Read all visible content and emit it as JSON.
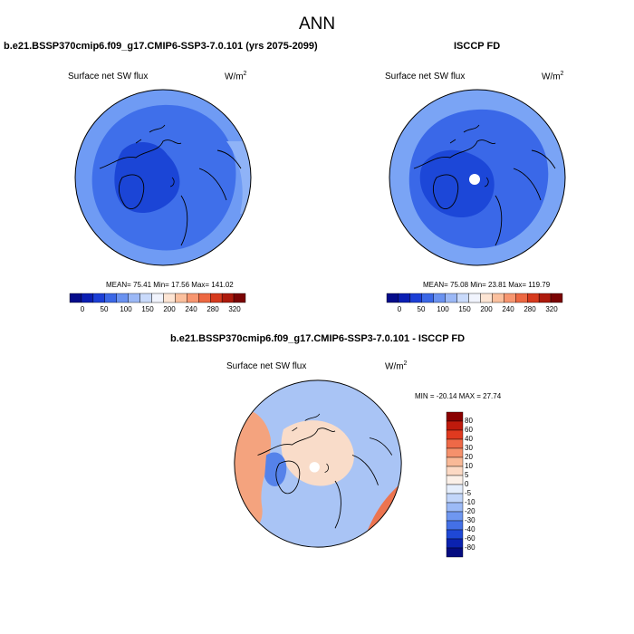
{
  "figure": {
    "title": "ANN"
  },
  "panels": [
    {
      "title": "b.e21.BSSP370cmip6.f09_g17.CMIP6-SSP3-7.0.101 (yrs 2075-2099)",
      "variable": "Surface net SW flux",
      "units": "W/m",
      "units_sup": "2",
      "stats": "MEAN=  75.41  Min=  17.56  Max= 141.02",
      "colors": {
        "base": "#3f6fea",
        "dark": "#1b45d6",
        "light": "#6f9bf4",
        "edge": "#8fb3f7"
      }
    },
    {
      "title": "ISCCP FD",
      "variable": "Surface net SW flux",
      "units": "W/m",
      "units_sup": "2",
      "stats": "MEAN=  75.08  Min=  23.81  Max= 119.79",
      "colors": {
        "base": "#3a68e8",
        "dark": "#1c47d8",
        "light": "#7aa4f5",
        "missing": "#ffffff"
      }
    },
    {
      "title": "b.e21.BSSP370cmip6.f09_g17.CMIP6-SSP3-7.0.101 - ISCCP FD",
      "variable": "Surface net SW flux",
      "units": "W/m",
      "units_sup": "2",
      "stats": "MIN = -20.14 MAX =  27.74",
      "colors": {
        "base": "#a9c4f5",
        "red": "#f4a37e",
        "deep_red": "#ec7450",
        "light": "#f9dcc9",
        "blue": "#5582ea"
      }
    }
  ],
  "colorbar_abs": {
    "labels": [
      "0",
      "50",
      "100",
      "150",
      "200",
      "240",
      "280",
      "320"
    ],
    "colors": [
      "#050c8a",
      "#0b1fb3",
      "#1c3fd6",
      "#3b67e6",
      "#6a92f0",
      "#9bb8f6",
      "#c9dafb",
      "#f1f4fd",
      "#fde5d4",
      "#fbc09e",
      "#f79670",
      "#ed6842",
      "#d63a1d",
      "#ad1a0c",
      "#7a0404"
    ]
  },
  "colorbar_diff": {
    "labels": [
      "80",
      "60",
      "40",
      "30",
      "20",
      "10",
      "5",
      "0",
      "-5",
      "-10",
      "-20",
      "-30",
      "-40",
      "-60",
      "-80"
    ],
    "colors": [
      "#8a0000",
      "#bf1a0c",
      "#e03a1f",
      "#ee6947",
      "#f5916c",
      "#f9b997",
      "#fcd9c4",
      "#fbf0e8",
      "#e5eefc",
      "#c2d6fa",
      "#9cbaf6",
      "#6f97f0",
      "#4470e6",
      "#1f48d6",
      "#0b22b0",
      "#050c80"
    ]
  }
}
